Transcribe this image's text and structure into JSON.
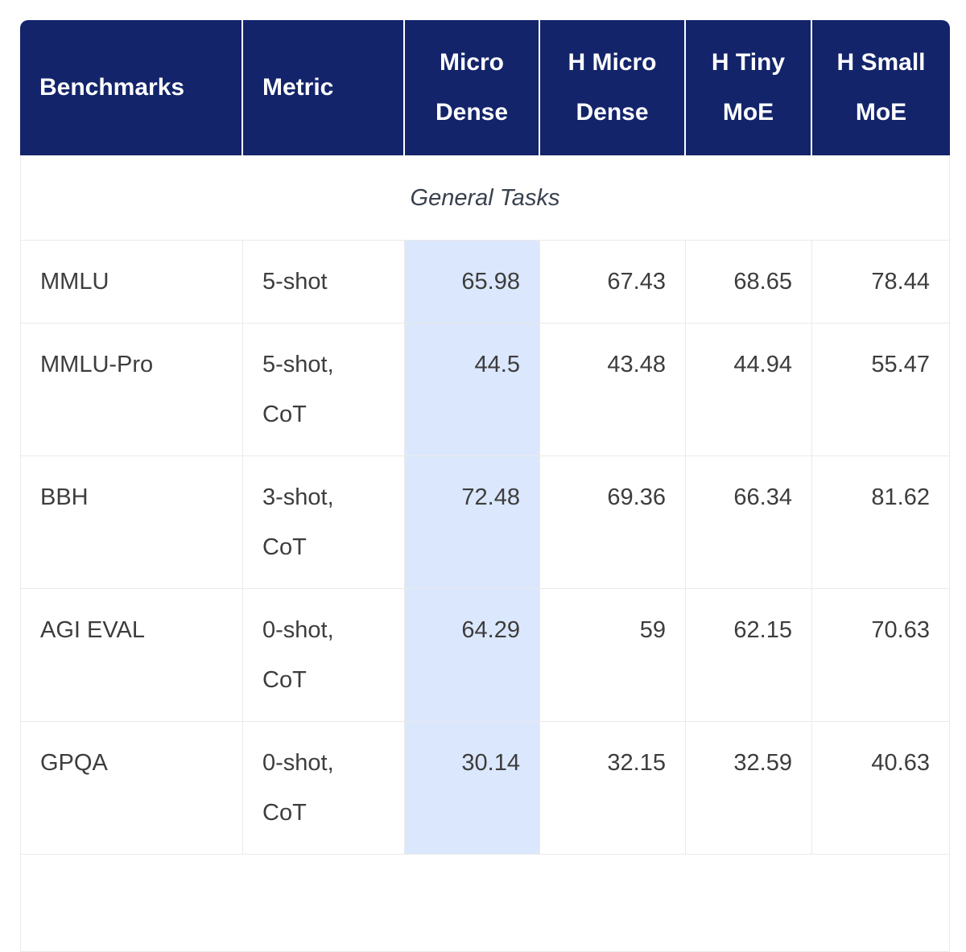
{
  "colors": {
    "header_bg": "#13246B",
    "header_text": "#FFFFFF",
    "highlight_column_bg": "#DBE7FC",
    "body_text": "#3D3D3D",
    "section_text": "#39414E",
    "border": "#EAEAEA"
  },
  "table": {
    "columns": [
      "Benchmarks",
      "Metric",
      "Micro Dense",
      "H Micro Dense",
      "H Tiny MoE",
      "H Small MoE"
    ],
    "section_label": "General Tasks",
    "highlighted_column": "Micro Dense",
    "rows": [
      {
        "benchmark": "MMLU",
        "metric": "5-shot",
        "values": [
          "65.98",
          "67.43",
          "68.65",
          "78.44"
        ]
      },
      {
        "benchmark": "MMLU-Pro",
        "metric": "5-shot,\nCoT",
        "values": [
          "44.5",
          "43.48",
          "44.94",
          "55.47"
        ]
      },
      {
        "benchmark": "BBH",
        "metric": "3-shot,\nCoT",
        "values": [
          "72.48",
          "69.36",
          "66.34",
          "81.62"
        ]
      },
      {
        "benchmark": "AGI EVAL",
        "metric": "0-shot,\nCoT",
        "values": [
          "64.29",
          "59",
          "62.15",
          "70.63"
        ]
      },
      {
        "benchmark": "GPQA",
        "metric": "0-shot,\nCoT",
        "values": [
          "30.14",
          "32.15",
          "32.59",
          "40.63"
        ]
      }
    ]
  },
  "chart_data": {
    "type": "table",
    "title": "",
    "section": "General Tasks",
    "columns": [
      "Benchmarks",
      "Metric",
      "Micro Dense",
      "H Micro Dense",
      "H Tiny MoE",
      "H Small MoE"
    ],
    "highlighted_column": "Micro Dense",
    "rows": [
      {
        "benchmark": "MMLU",
        "metric": "5-shot",
        "values": [
          65.98,
          67.43,
          68.65,
          78.44
        ]
      },
      {
        "benchmark": "MMLU-Pro",
        "metric": "5-shot, CoT",
        "values": [
          44.5,
          43.48,
          44.94,
          55.47
        ]
      },
      {
        "benchmark": "BBH",
        "metric": "3-shot, CoT",
        "values": [
          72.48,
          69.36,
          66.34,
          81.62
        ]
      },
      {
        "benchmark": "AGI EVAL",
        "metric": "0-shot, CoT",
        "values": [
          64.29,
          59,
          62.15,
          70.63
        ]
      },
      {
        "benchmark": "GPQA",
        "metric": "0-shot, CoT",
        "values": [
          30.14,
          32.15,
          32.59,
          40.63
        ]
      }
    ]
  }
}
